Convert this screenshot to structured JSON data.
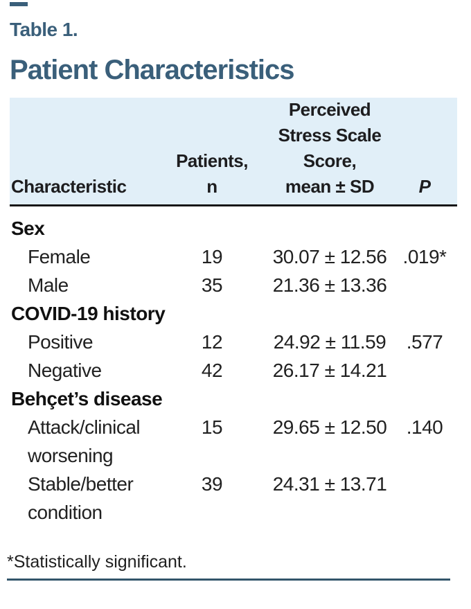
{
  "page": {
    "eyebrow": "Table 1.",
    "title": "Patient Characteristics",
    "footnote": "*Statistically significant.",
    "colors": {
      "accent_title": "#3a5f7a",
      "header_background": "#e1eff8",
      "header_rule": "#161616",
      "bottom_rule": "#33566b",
      "body_text": "#212121"
    }
  },
  "chart_data": {
    "type": "table",
    "title": "Table 1. Patient Characteristics",
    "columns": [
      "Characteristic",
      "Patients, n",
      "Perceived Stress Scale Score, mean ± SD",
      "P"
    ],
    "rows": [
      [
        "Sex",
        "",
        "",
        ""
      ],
      [
        "Female",
        "19",
        "30.07 ± 12.56",
        ".019*"
      ],
      [
        "Male",
        "35",
        "21.36 ± 13.36",
        ""
      ],
      [
        "COVID-19 history",
        "",
        "",
        ""
      ],
      [
        "Positive",
        "12",
        "24.92 ± 11.59",
        ".577"
      ],
      [
        "Negative",
        "42",
        "26.17 ± 14.21",
        ""
      ],
      [
        "Behçet’s disease",
        "",
        "",
        ""
      ],
      [
        "Attack/clinical worsening",
        "15",
        "29.65 ± 12.50",
        ".140"
      ],
      [
        "Stable/better condition",
        "39",
        "24.31 ± 13.71",
        ""
      ]
    ],
    "footnote": "*Statistically significant."
  },
  "table": {
    "columns": {
      "characteristic": "Characteristic",
      "patients": "Patients,\nn",
      "pss": "Perceived\nStress Scale\nScore,\nmean ± SD",
      "p": "P"
    },
    "rows": [
      {
        "type": "category",
        "label": "Sex",
        "n": "",
        "score": "",
        "p": ""
      },
      {
        "type": "item",
        "label": "Female",
        "n": "19",
        "score": "30.07 ± 12.56",
        "p": ".019*"
      },
      {
        "type": "item",
        "label": "Male",
        "n": "35",
        "score": "21.36 ± 13.36",
        "p": ""
      },
      {
        "type": "category",
        "label": "COVID-19 history",
        "n": "",
        "score": "",
        "p": ""
      },
      {
        "type": "item",
        "label": "Positive",
        "n": "12",
        "score": "24.92 ± 11.59",
        "p": ".577"
      },
      {
        "type": "item",
        "label": "Negative",
        "n": "42",
        "score": "26.17 ± 14.21",
        "p": ""
      },
      {
        "type": "category",
        "label": "Behçet’s disease",
        "n": "",
        "score": "",
        "p": ""
      },
      {
        "type": "item",
        "label": "Attack/clinical\nworsening",
        "n": "15",
        "score": "29.65 ± 12.50",
        "p": ".140"
      },
      {
        "type": "item",
        "label": "Stable/better\ncondition",
        "n": "39",
        "score": "24.31 ± 13.71",
        "p": ""
      }
    ]
  }
}
